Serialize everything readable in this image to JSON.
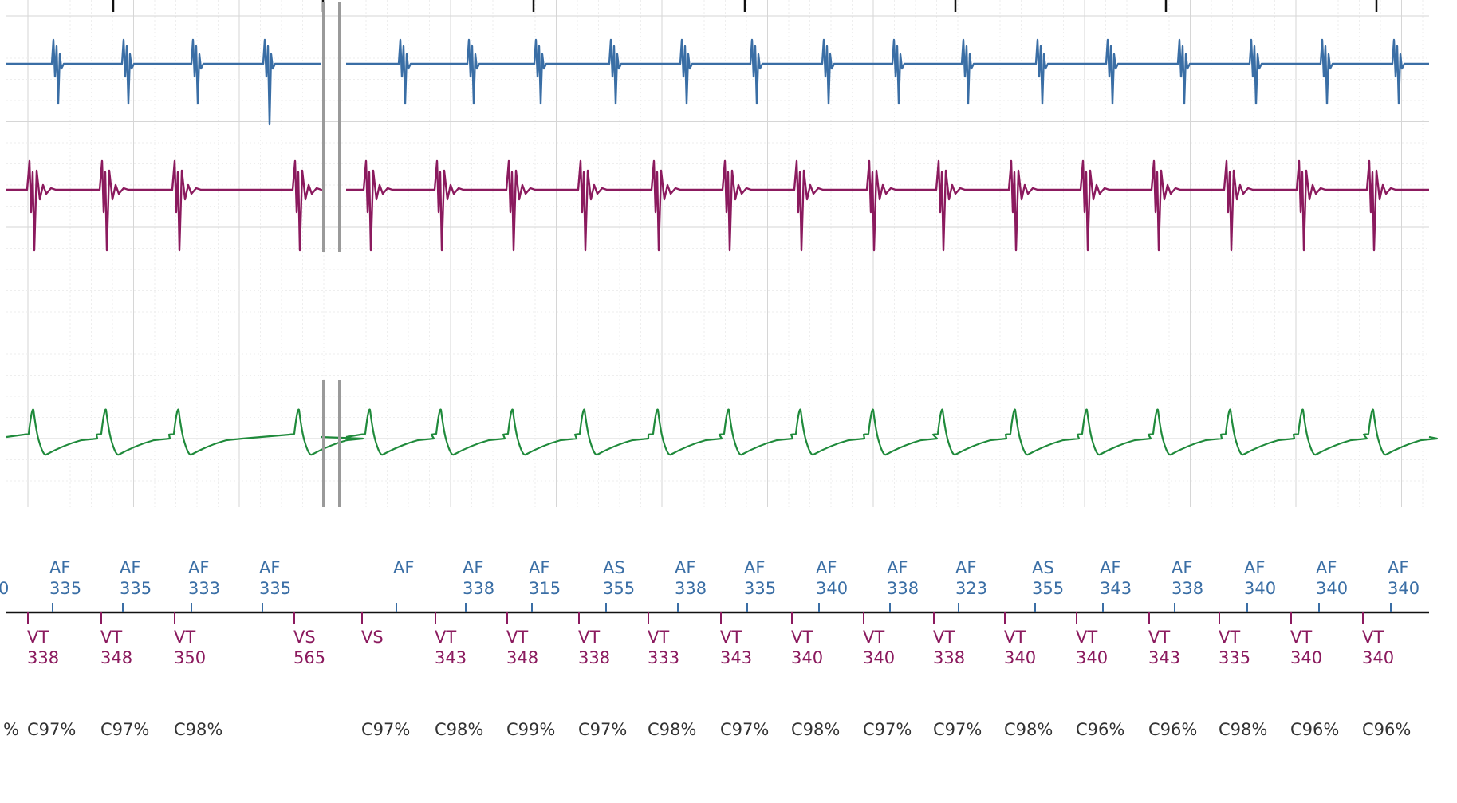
{
  "colors": {
    "atrial": "#3a6ea5",
    "ventricular": "#8b1a5e",
    "shock": "#1f8a3b",
    "grid": "#d6d6d6",
    "grid_fine": "#eeeeee",
    "axis": "#111111",
    "note": "#333333"
  },
  "chart_data": {
    "type": "line",
    "title": "",
    "grid": true,
    "channels": [
      {
        "name": "",
        "color": "atrial",
        "kind": "far-field-spikes"
      },
      {
        "name": "",
        "color": "ventricular",
        "kind": "near-field-biphasic"
      },
      {
        "name": "",
        "color": "shock",
        "kind": "far-field-rounded"
      }
    ],
    "markers": {
      "atrial": [
        {
          "label": "",
          "value": "0"
        },
        {
          "label": "AF",
          "value": "335"
        },
        {
          "label": "AF",
          "value": "335"
        },
        {
          "label": "AF",
          "value": "333"
        },
        {
          "label": "AF",
          "value": "335"
        },
        {
          "label": "AF",
          "value": ""
        },
        {
          "label": "AF",
          "value": "338"
        },
        {
          "label": "AF",
          "value": "315"
        },
        {
          "label": "AS",
          "value": "355"
        },
        {
          "label": "AF",
          "value": "338"
        },
        {
          "label": "AF",
          "value": "335"
        },
        {
          "label": "AF",
          "value": "340"
        },
        {
          "label": "AF",
          "value": "338"
        },
        {
          "label": "AF",
          "value": "323"
        },
        {
          "label": "AS",
          "value": "355"
        },
        {
          "label": "AF",
          "value": "343"
        },
        {
          "label": "AF",
          "value": "338"
        },
        {
          "label": "AF",
          "value": "340"
        },
        {
          "label": "AF",
          "value": "340"
        },
        {
          "label": "AF",
          "value": "340"
        }
      ],
      "ventricular": [
        {
          "label": "VT",
          "value": "338"
        },
        {
          "label": "VT",
          "value": "348"
        },
        {
          "label": "VT",
          "value": "350"
        },
        {
          "label": "VS",
          "value": "565"
        },
        {
          "label": "VS",
          "value": ""
        },
        {
          "label": "VT",
          "value": "343"
        },
        {
          "label": "VT",
          "value": "348"
        },
        {
          "label": "VT",
          "value": "338"
        },
        {
          "label": "VT",
          "value": "333"
        },
        {
          "label": "VT",
          "value": "343"
        },
        {
          "label": "VT",
          "value": "340"
        },
        {
          "label": "VT",
          "value": "340"
        },
        {
          "label": "VT",
          "value": "338"
        },
        {
          "label": "VT",
          "value": "340"
        },
        {
          "label": "VT",
          "value": "340"
        },
        {
          "label": "VT",
          "value": "343"
        },
        {
          "label": "VT",
          "value": "335"
        },
        {
          "label": "VT",
          "value": "340"
        },
        {
          "label": "VT",
          "value": "340"
        }
      ]
    },
    "morphology": [
      "%",
      "C97%",
      "C97%",
      "C98%",
      "C97%",
      "C98%",
      "C99%",
      "C97%",
      "C98%",
      "C97%",
      "C98%",
      "C97%",
      "C97%",
      "C98%",
      "C96%",
      "C96%",
      "C98%",
      "C96%",
      "C96%"
    ]
  }
}
